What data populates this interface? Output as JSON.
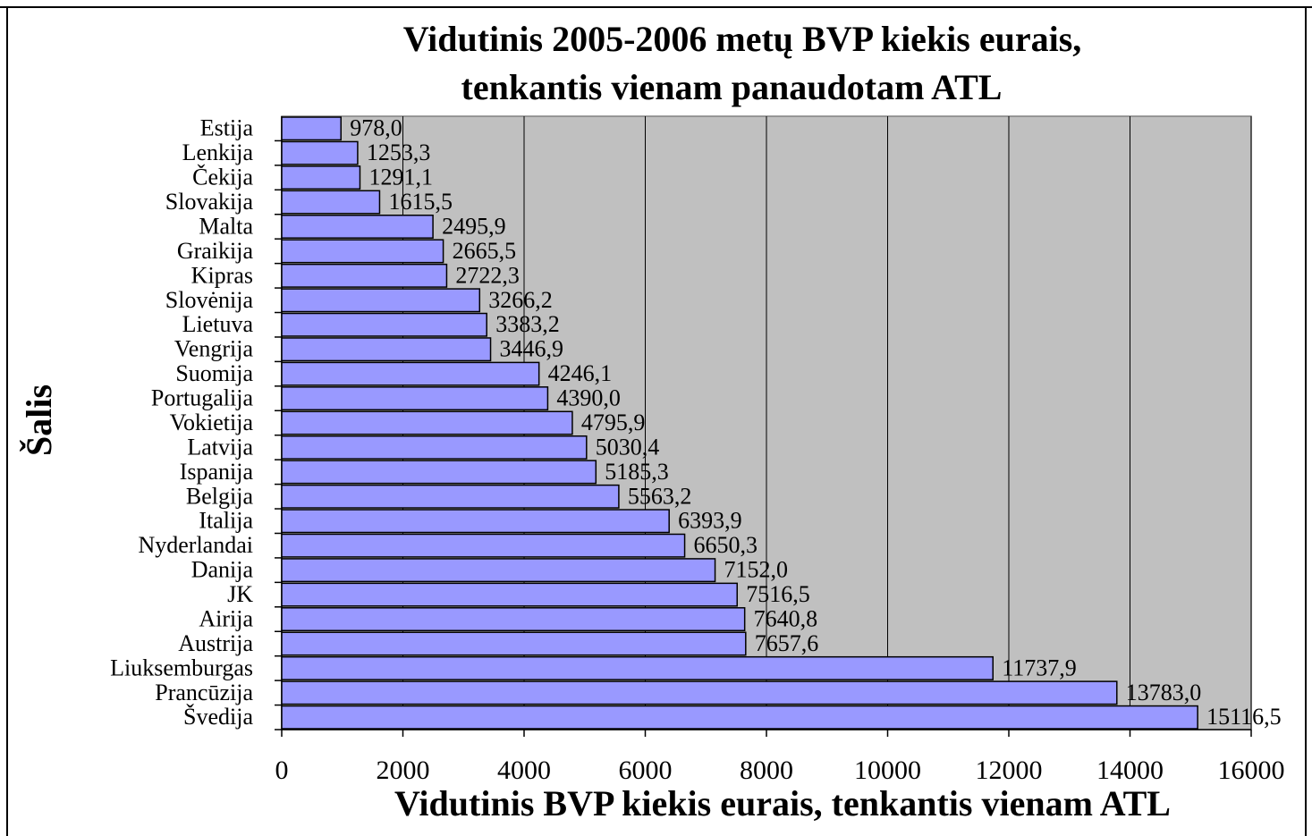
{
  "chart_data": {
    "type": "bar",
    "orientation": "horizontal",
    "title": [
      "Vidutinis 2005-2006 metų BVP kiekis eurais,",
      "tenkantis vienam panaudotam ATL"
    ],
    "xlabel": "Vidutinis BVP kiekis eurais, tenkantis vienam ATL",
    "ylabel": "Šalis",
    "categories": [
      "Estija",
      "Lenkija",
      "Čekija",
      "Slovakija",
      "Malta",
      "Graikija",
      "Kipras",
      "Slovėnija",
      "Lietuva",
      "Vengrija",
      "Suomija",
      "Portugalija",
      "Vokietija",
      "Latvija",
      "Ispanija",
      "Belgija",
      "Italija",
      "Nyderlandai",
      "Danija",
      "JK",
      "Airija",
      "Austrija",
      "Liuksemburgas",
      "Prancūzija",
      "Švedija"
    ],
    "values": [
      978.0,
      1253.3,
      1291.1,
      1615.5,
      2495.9,
      2665.5,
      2722.3,
      3266.2,
      3383.2,
      3446.9,
      4246.1,
      4390.0,
      4795.9,
      5030.4,
      5185.3,
      5563.2,
      6393.9,
      6650.3,
      7152.0,
      7516.5,
      7640.8,
      7657.6,
      11737.9,
      13783.0,
      15116.5
    ],
    "value_labels": [
      "978,0",
      "1253,3",
      "1291,1",
      "1615,5",
      "2495,9",
      "2665,5",
      "2722,3",
      "3266,2",
      "3383,2",
      "3446,9",
      "4246,1",
      "4390,0",
      "4795,9",
      "5030,4",
      "5185,3",
      "5563,2",
      "6393,9",
      "6650,3",
      "7152,0",
      "7516,5",
      "7640,8",
      "7657,6",
      "11737,9",
      "13783,0",
      "15116,5"
    ],
    "color": "#9999ff",
    "background": "#c0c0c0",
    "xlim": [
      0,
      16000
    ],
    "xticks": [
      0,
      2000,
      4000,
      6000,
      8000,
      10000,
      12000,
      14000,
      16000
    ],
    "grid": true
  }
}
